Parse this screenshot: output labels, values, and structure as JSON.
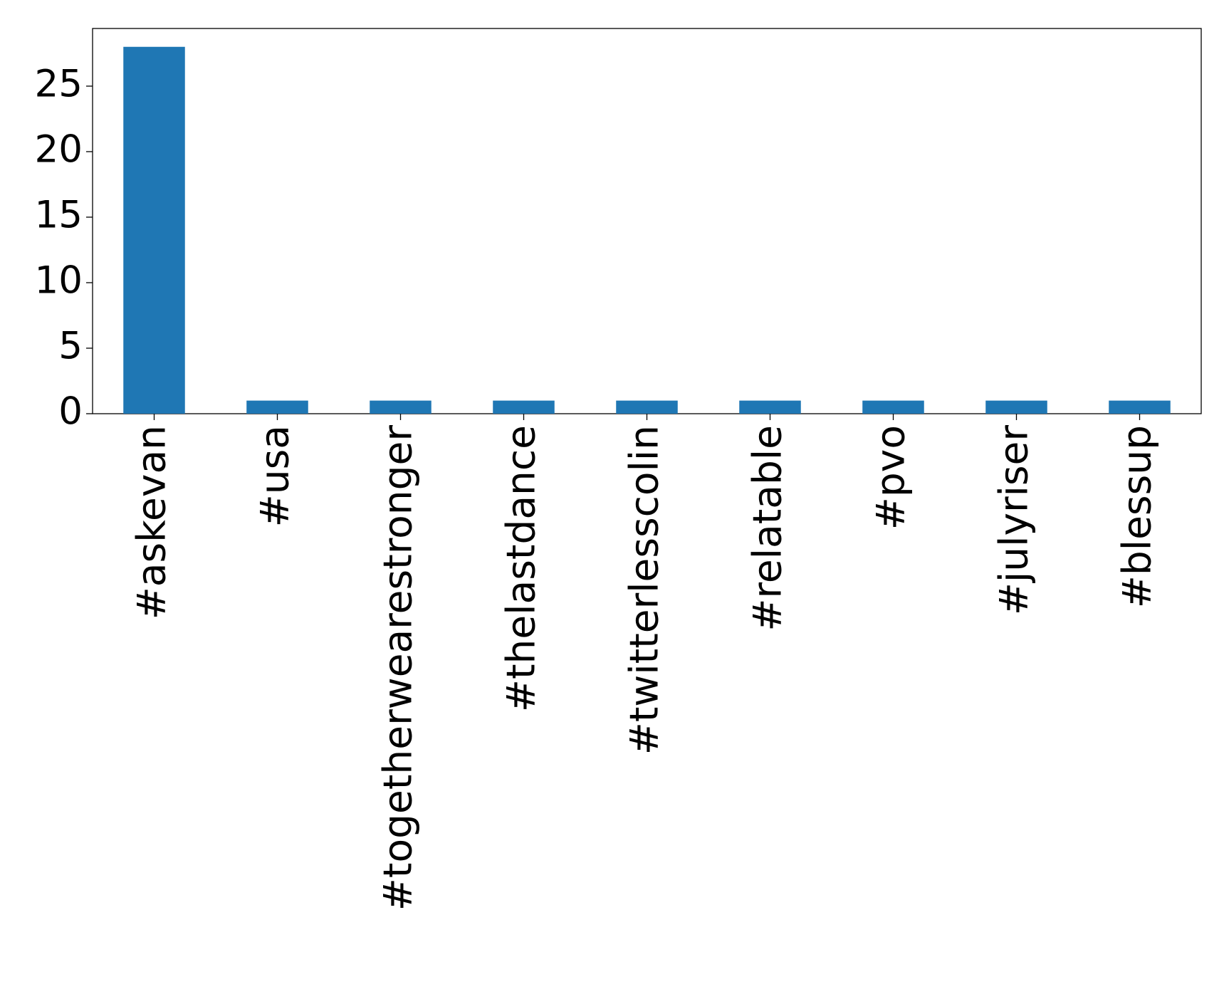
{
  "chart_data": {
    "type": "bar",
    "categories": [
      "#askevan",
      "#usa",
      "#togetherwearestronger",
      "#thelastdance",
      "#twitterlesscolin",
      "#relatable",
      "#pvo",
      "#julyriser",
      "#blessup"
    ],
    "values": [
      28,
      1,
      1,
      1,
      1,
      1,
      1,
      1,
      1
    ],
    "color": "#1f77b4",
    "ylim": [
      0,
      29.4
    ],
    "yticks": [
      0,
      5,
      10,
      15,
      20,
      25
    ],
    "grid": false
  }
}
